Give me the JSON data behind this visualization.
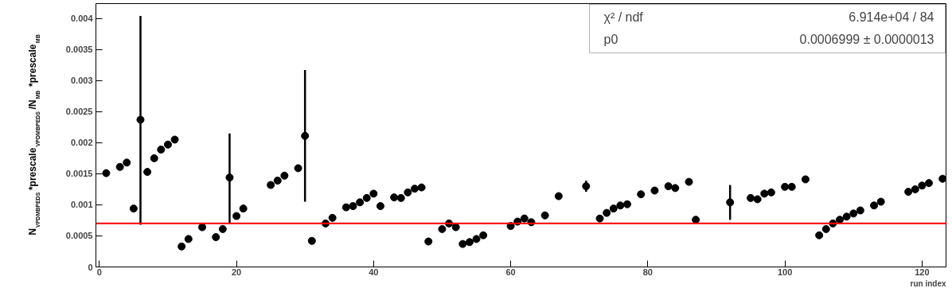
{
  "chart_data": {
    "type": "scatter",
    "xlabel": "run index",
    "ylabel": "N$_{VPDMBPEDS}$ *prescale$_{VPDMBPEDS}$ /N$_{MB}$ *prescale$_{MB}$",
    "annotations": [
      "χ² / ndf",
      "6.914e+04 / 84",
      "p0",
      "0.0006999 ± 0.0000013"
    ],
    "marker": "circle",
    "xlim": [
      -0.5,
      123.5
    ],
    "xticks": [
      0,
      20,
      40,
      60,
      80,
      100,
      120
    ],
    "ylim": [
      0,
      0.00424
    ],
    "yticks": [
      0,
      0.0005,
      0.001,
      0.0015,
      0.002,
      0.0025,
      0.003,
      0.0035,
      0.004
    ],
    "ref_lines": [
      {
        "axis": "y",
        "value": 0.0006999,
        "label": null,
        "color": "#ff0000",
        "line_style": "solid"
      }
    ],
    "series": [
      {
        "color": "#000000",
        "x": [
          1,
          3,
          4,
          5,
          6,
          7,
          8,
          9,
          10,
          11,
          12,
          13,
          15,
          17,
          18,
          19,
          20,
          21,
          25,
          26,
          27,
          29,
          30,
          31,
          33,
          34,
          36,
          37,
          38,
          39,
          40,
          41,
          43,
          44,
          45,
          46,
          47,
          48,
          50,
          51,
          52,
          53,
          54,
          55,
          56,
          60,
          61,
          62,
          63,
          65,
          67,
          71,
          73,
          74,
          75,
          76,
          77,
          79,
          81,
          83,
          84,
          86,
          87,
          92,
          95,
          96,
          97,
          98,
          100,
          101,
          103,
          105,
          106,
          107,
          108,
          109,
          110,
          111,
          113,
          114,
          118,
          119,
          120,
          121,
          123
        ],
        "values": [
          0.00151,
          0.00161,
          0.00168,
          0.00094,
          0.00237,
          0.00153,
          0.00175,
          0.00189,
          0.00197,
          0.00205,
          0.00033,
          0.00045,
          0.00064,
          0.00048,
          0.00061,
          0.00144,
          0.00082,
          0.00094,
          0.00132,
          0.00139,
          0.00147,
          0.00159,
          0.00211,
          0.00042,
          0.0007,
          0.00079,
          0.00096,
          0.00098,
          0.00104,
          0.00111,
          0.00118,
          0.00098,
          0.00112,
          0.00111,
          0.0012,
          0.00126,
          0.00128,
          0.00041,
          0.00061,
          0.0007,
          0.00064,
          0.00037,
          0.0004,
          0.00045,
          0.00051,
          0.00066,
          0.00073,
          0.00078,
          0.00072,
          0.00083,
          0.00114,
          0.0013,
          0.00078,
          0.00087,
          0.00094,
          0.00099,
          0.00101,
          0.00117,
          0.00123,
          0.0013,
          0.00127,
          0.00137,
          0.00076,
          0.00104,
          0.00111,
          0.00109,
          0.00118,
          0.0012,
          0.00129,
          0.00129,
          0.00141,
          0.00051,
          0.00061,
          0.0007,
          0.00076,
          0.00081,
          0.00086,
          0.00091,
          0.00099,
          0.00105,
          0.00121,
          0.00125,
          0.00131,
          0.00135,
          0.00142
        ],
        "errors": [
          null,
          null,
          null,
          null,
          [
            0.00068,
            0.00404
          ],
          null,
          null,
          null,
          null,
          null,
          null,
          null,
          null,
          null,
          null,
          [
            0.00071,
            0.00215
          ],
          null,
          null,
          null,
          null,
          null,
          null,
          [
            0.00105,
            0.00317
          ],
          null,
          null,
          null,
          null,
          null,
          null,
          null,
          null,
          null,
          null,
          null,
          null,
          null,
          null,
          null,
          null,
          null,
          null,
          null,
          null,
          null,
          null,
          null,
          null,
          null,
          null,
          null,
          null,
          [
            0.00121,
            0.00139
          ],
          null,
          null,
          null,
          null,
          null,
          null,
          null,
          null,
          null,
          null,
          null,
          [
            0.00076,
            0.00132
          ],
          null,
          null,
          null,
          null,
          null,
          null,
          null,
          null,
          null,
          null,
          null,
          null,
          null,
          null,
          null,
          null,
          null,
          null,
          null,
          null,
          null
        ]
      }
    ]
  }
}
